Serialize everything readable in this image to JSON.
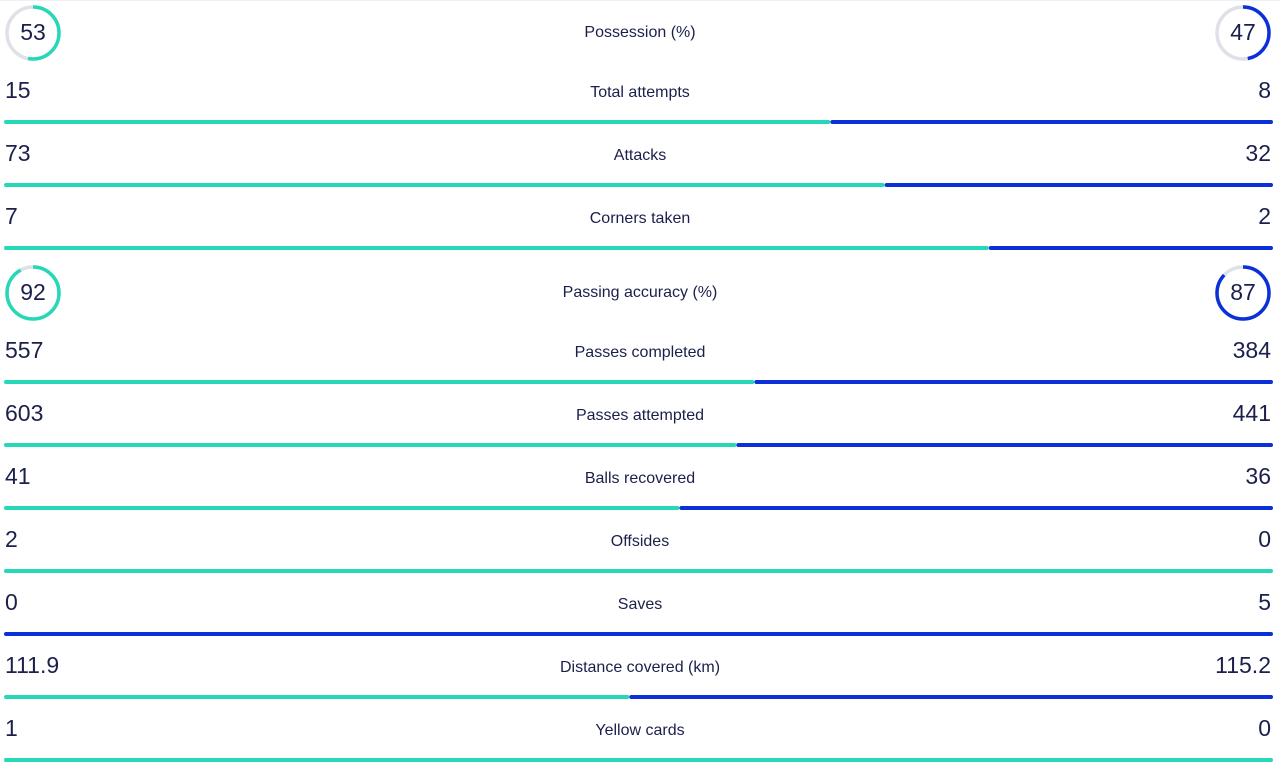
{
  "stats": [
    {
      "type": "ring",
      "label": "Possession (%)",
      "home": 53,
      "away": 47
    },
    {
      "type": "bar",
      "label": "Total attempts",
      "home": 15,
      "away": 8
    },
    {
      "type": "bar",
      "label": "Attacks",
      "home": 73,
      "away": 32
    },
    {
      "type": "bar",
      "label": "Corners taken",
      "home": 7,
      "away": 2
    },
    {
      "type": "ring",
      "label": "Passing accuracy (%)",
      "home": 92,
      "away": 87
    },
    {
      "type": "bar",
      "label": "Passes completed",
      "home": 557,
      "away": 384
    },
    {
      "type": "bar",
      "label": "Passes attempted",
      "home": 603,
      "away": 441
    },
    {
      "type": "bar",
      "label": "Balls recovered",
      "home": 41,
      "away": 36
    },
    {
      "type": "bar",
      "label": "Offsides",
      "home": 2,
      "away": 0
    },
    {
      "type": "bar",
      "label": "Saves",
      "home": 0,
      "away": 5
    },
    {
      "type": "bar",
      "label": "Distance covered (km)",
      "home": 111.9,
      "away": 115.2
    },
    {
      "type": "bar",
      "label": "Yellow cards",
      "home": 1,
      "away": 0
    }
  ],
  "home_color": "#27d8b8",
  "away_color": "#0b30d8"
}
